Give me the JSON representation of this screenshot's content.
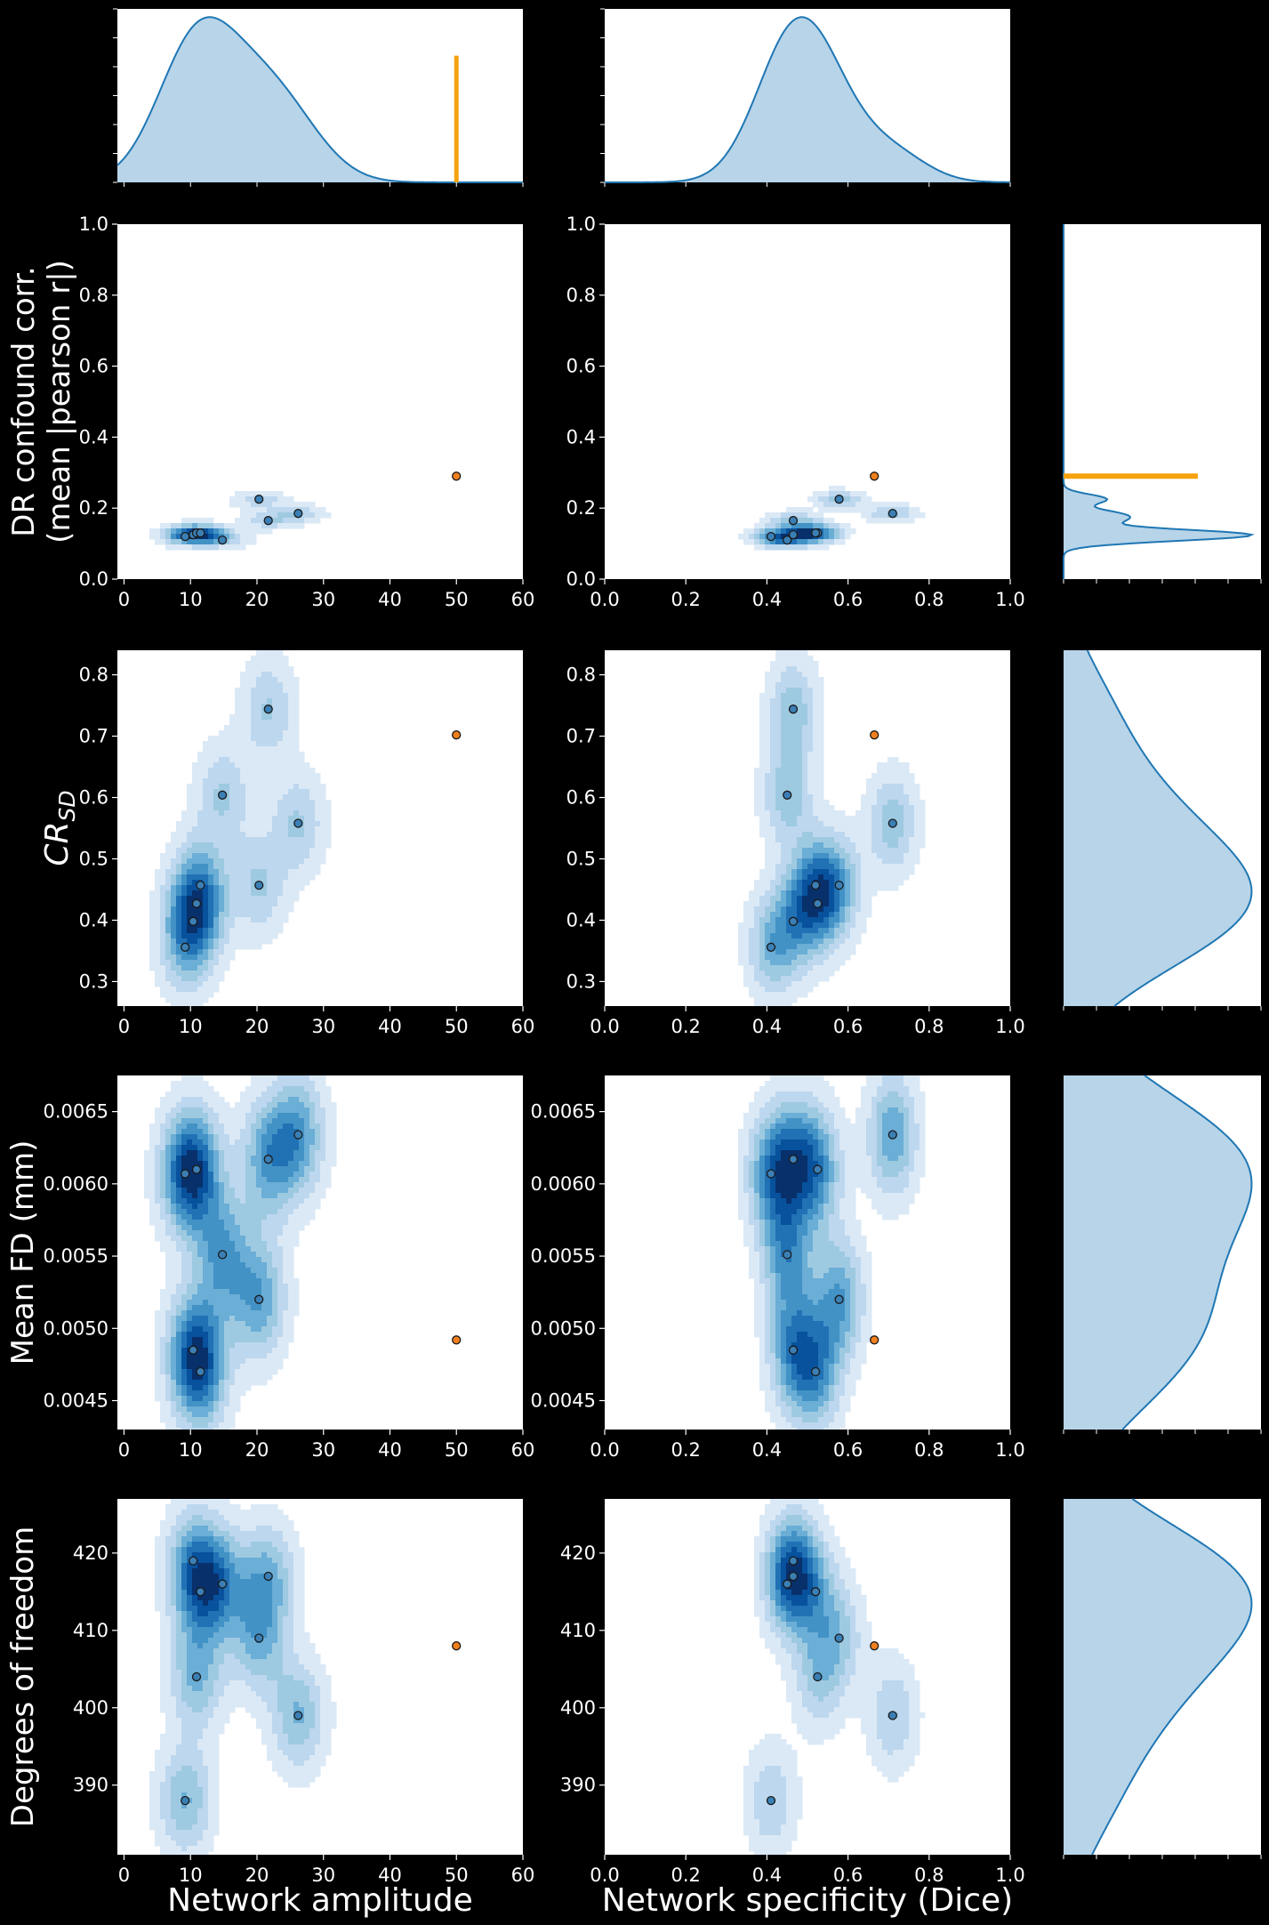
{
  "figure": {
    "background": "#000000",
    "text_color": "#ffffff"
  },
  "colors": {
    "subject_points": "#3b7fb5",
    "reference_point": "#f07f1e",
    "reference_line": "#f5a20f",
    "kde_line": "#1f77b4",
    "kde_fill": "#b8d4e8",
    "contour_levels": [
      "#dbe9f6",
      "#bdd7ee",
      "#9ecae1",
      "#6baed6",
      "#4292c6",
      "#2171b5",
      "#08519c",
      "#08306b"
    ]
  },
  "xlabels": {
    "amplitude": "Network amplitude",
    "specificity": "Network specificity (Dice)"
  },
  "ylabels": {
    "dr": "DR confound corr.\n(mean |pearson r|)",
    "crsd": "CR_SD",
    "fd": "Mean FD (mm)",
    "dof": "Degrees of freedom"
  },
  "chart_data": {
    "type": "scatter",
    "x_variables": [
      {
        "key": "amplitude",
        "label": "Network amplitude",
        "xlim": [
          -1,
          60
        ],
        "ticks": [
          "0",
          "10",
          "20",
          "30",
          "40",
          "50",
          "60"
        ],
        "reference_value": 50
      },
      {
        "key": "specificity",
        "label": "Network specificity (Dice)",
        "xlim": [
          0.0,
          1.0
        ],
        "ticks": [
          "0.0",
          "0.2",
          "0.4",
          "0.6",
          "0.8",
          "1.0"
        ],
        "reference_value": null
      }
    ],
    "y_variables": [
      {
        "key": "dr",
        "label": "DR confound corr. (mean |pearson r|)",
        "ylim": [
          0.0,
          1.0
        ],
        "ticks": [
          "0.0",
          "0.2",
          "0.4",
          "0.6",
          "0.8",
          "1.0"
        ],
        "reference_value": 0.29,
        "show_marginal": true
      },
      {
        "key": "crsd",
        "label": "CR_SD",
        "ylim": [
          0.26,
          0.84
        ],
        "ticks": [
          "0.3",
          "0.4",
          "0.5",
          "0.6",
          "0.7",
          "0.8"
        ],
        "reference_value": null,
        "show_marginal": true
      },
      {
        "key": "fd",
        "label": "Mean FD (mm)",
        "ylim": [
          0.0043,
          0.00675
        ],
        "ticks": [
          "0.0045",
          "0.0050",
          "0.0055",
          "0.0060",
          "0.0065"
        ],
        "reference_value": null,
        "show_marginal": true
      },
      {
        "key": "dof",
        "label": "Degrees of freedom",
        "ylim": [
          381,
          427
        ],
        "ticks": [
          "390",
          "400",
          "410",
          "420"
        ],
        "reference_value": null,
        "show_marginal": true
      }
    ],
    "subjects": [
      {
        "amplitude": 9.2,
        "specificity": 0.41,
        "dr": 0.12,
        "crsd": 0.356,
        "fd": 0.00607,
        "dof": 388
      },
      {
        "amplitude": 10.4,
        "specificity": 0.465,
        "dr": 0.125,
        "crsd": 0.398,
        "fd": 0.00485,
        "dof": 419
      },
      {
        "amplitude": 10.9,
        "specificity": 0.525,
        "dr": 0.13,
        "crsd": 0.427,
        "fd": 0.0061,
        "dof": 404
      },
      {
        "amplitude": 11.5,
        "specificity": 0.52,
        "dr": 0.13,
        "crsd": 0.457,
        "fd": 0.0047,
        "dof": 415
      },
      {
        "amplitude": 14.8,
        "specificity": 0.45,
        "dr": 0.11,
        "crsd": 0.604,
        "fd": 0.00551,
        "dof": 416
      },
      {
        "amplitude": 20.3,
        "specificity": 0.578,
        "dr": 0.225,
        "crsd": 0.457,
        "fd": 0.0052,
        "dof": 409
      },
      {
        "amplitude": 21.7,
        "specificity": 0.465,
        "dr": 0.165,
        "crsd": 0.744,
        "fd": 0.00617,
        "dof": 417
      },
      {
        "amplitude": 26.2,
        "specificity": 0.71,
        "dr": 0.185,
        "crsd": 0.558,
        "fd": 0.00634,
        "dof": 399
      }
    ],
    "reference": {
      "amplitude": 50,
      "specificity": 0.665,
      "dr": 0.29,
      "crsd": 0.702,
      "fd": 0.00492,
      "dof": 408
    },
    "kde_fills": "blues contours",
    "grid": false,
    "legend": "none"
  }
}
